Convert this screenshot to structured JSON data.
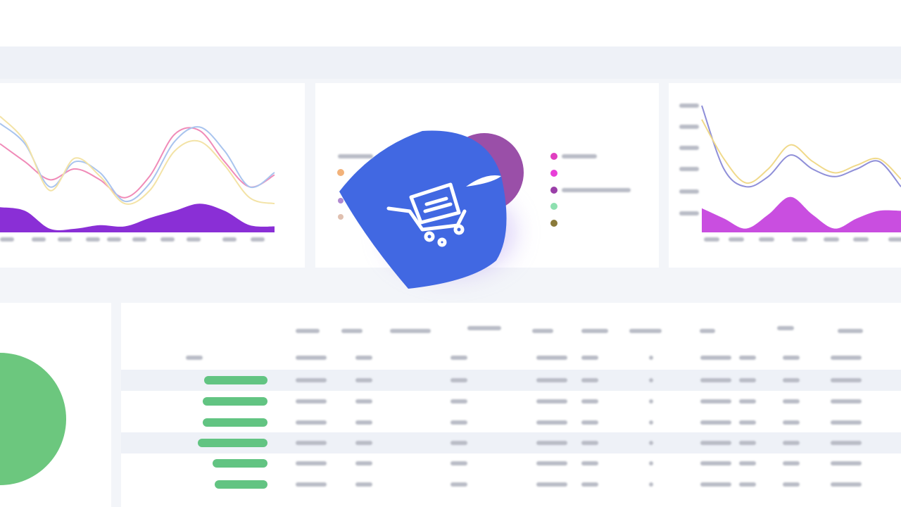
{
  "chart_data": [
    {
      "type": "line",
      "ylim": [
        0,
        100
      ],
      "series": [
        {
          "color": "#f08bb8",
          "values": [
            74,
            59,
            44,
            53,
            44,
            29,
            47,
            82,
            85,
            59,
            38,
            48
          ]
        },
        {
          "color": "#a9c4ee",
          "values": [
            91,
            74,
            38,
            59,
            50,
            26,
            41,
            76,
            88,
            68,
            38,
            50
          ]
        },
        {
          "color": "#f3e3a6",
          "values": [
            97,
            76,
            35,
            62,
            47,
            24,
            35,
            68,
            76,
            56,
            29,
            24
          ]
        },
        {
          "color": "#8a2fd6",
          "fill": true,
          "values": [
            21,
            18,
            3,
            3,
            6,
            5,
            12,
            18,
            24,
            18,
            6,
            5
          ]
        }
      ]
    },
    {
      "type": "line",
      "ylim": [
        0,
        100
      ],
      "series": [
        {
          "color": "#8f8fd8",
          "values": [
            100,
            50,
            36,
            44,
            61,
            50,
            44,
            50,
            56,
            36
          ]
        },
        {
          "color": "#f0d98a",
          "values": [
            89,
            58,
            39,
            50,
            69,
            56,
            47,
            53,
            58,
            42
          ]
        },
        {
          "color": "#c94ee0",
          "fill": true,
          "values": [
            19,
            11,
            3,
            14,
            28,
            14,
            3,
            11,
            17,
            17
          ]
        }
      ]
    },
    {
      "type": "pie",
      "values": [
        62,
        38
      ],
      "colors": [
        "#6cc77e",
        "#4a6fe0"
      ]
    },
    {
      "type": "bar",
      "xlim": [
        0,
        100
      ],
      "color": "#62c482",
      "values": [
        90,
        92,
        92,
        99,
        78,
        75
      ]
    }
  ]
}
